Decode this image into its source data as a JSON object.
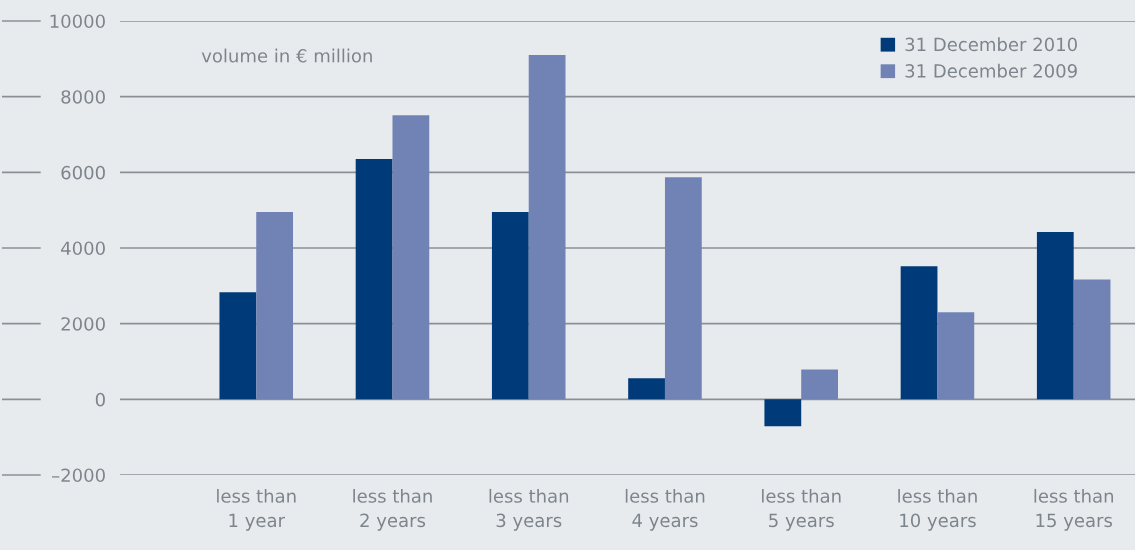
{
  "chart_data": {
    "type": "bar",
    "categories": [
      "less than\n1 year",
      "less than\n2 years",
      "less than\n3 years",
      "less than\n4 years",
      "less than\n5 years",
      "less than\n10 years",
      "less than\n15 years"
    ],
    "series": [
      {
        "name": "31 December 2010",
        "color": "#003a78",
        "values": [
          2830,
          6350,
          4950,
          560,
          -710,
          3520,
          4420
        ]
      },
      {
        "name": "31 December 2009",
        "color": "#7083b4",
        "values": [
          4950,
          7510,
          9100,
          5870,
          790,
          2300,
          3170
        ]
      }
    ],
    "ylim": [
      -2000,
      10000
    ],
    "yticks": [
      {
        "value": -2000,
        "label": "–2000"
      },
      0,
      2000,
      4000,
      6000,
      8000,
      10000
    ],
    "grid": "y",
    "legend": "top right",
    "annotations": [
      "volume in € million"
    ]
  }
}
